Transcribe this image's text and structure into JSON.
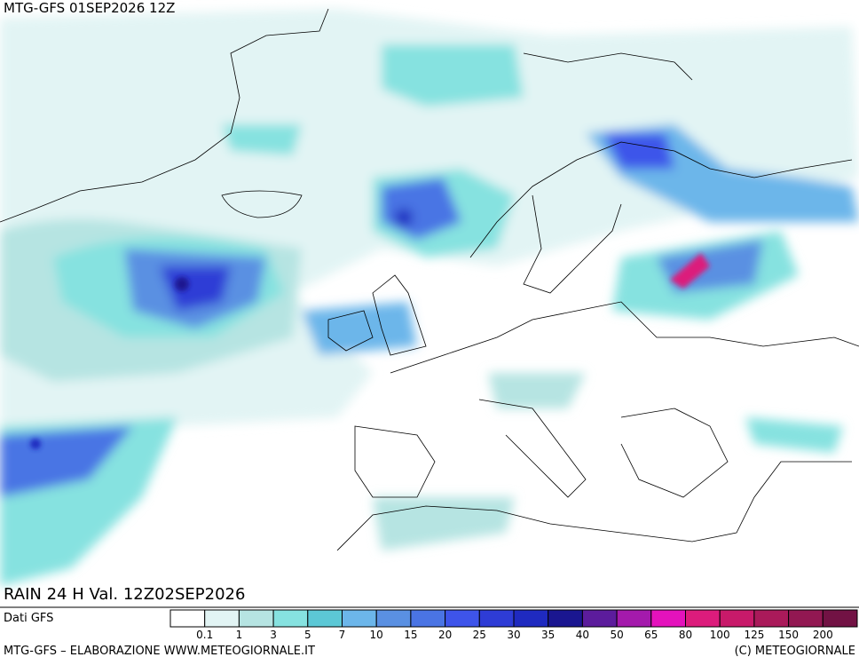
{
  "header": {
    "title": "MTG-GFS 01SEP2026 12Z"
  },
  "map": {
    "caption": "RAIN 24 H Val. 12Z02SEP2026"
  },
  "legend": {
    "source": "Dati GFS",
    "colors": [
      "#ffffff",
      "#e2f4f4",
      "#b6e4e2",
      "#86e2e0",
      "#5cc8d6",
      "#6cb6ea",
      "#5a90e2",
      "#4a74e4",
      "#3e54ea",
      "#2e3cd6",
      "#1f2ac0",
      "#1a1690",
      "#5c1c9c",
      "#a41aac",
      "#e412bc",
      "#dc1c7c",
      "#c81a6a",
      "#aa1a5a",
      "#921852",
      "#721244"
    ],
    "labels": [
      "0.1",
      "1",
      "3",
      "5",
      "7",
      "10",
      "15",
      "20",
      "25",
      "30",
      "35",
      "40",
      "50",
      "65",
      "80",
      "100",
      "125",
      "150",
      "200"
    ]
  },
  "footer": {
    "left": "MTG-GFS – ELABORAZIONE WWW.METEOGIORNALE.IT",
    "right": "(C) METEOGIORNALE"
  }
}
